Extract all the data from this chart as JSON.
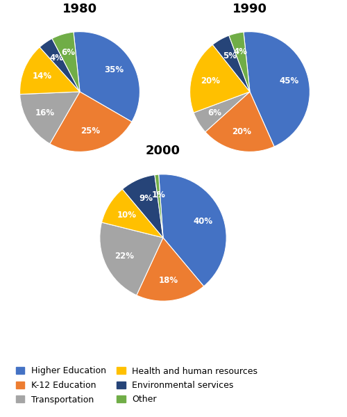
{
  "title_1980": "1980",
  "title_1990": "1990",
  "title_2000": "2000",
  "categories": [
    "Higher Education",
    "K-12 Education",
    "Transportation",
    "Health and human resources",
    "Environmental services",
    "Other"
  ],
  "colors": [
    "#4472C4",
    "#ED7D31",
    "#A5A5A5",
    "#FFC000",
    "#264478",
    "#70AD47"
  ],
  "data_1980": [
    35,
    25,
    16,
    14,
    4,
    6
  ],
  "data_1990": [
    45,
    20,
    6,
    20,
    5,
    4
  ],
  "data_2000": [
    40,
    18,
    22,
    10,
    9,
    1
  ],
  "startangle_1980": 96,
  "startangle_1990": 96,
  "startangle_2000": 94,
  "label_color": "white",
  "label_fontsize": 8.5,
  "title_fontsize": 13,
  "legend_fontsize": 9,
  "background_color": "#ffffff"
}
